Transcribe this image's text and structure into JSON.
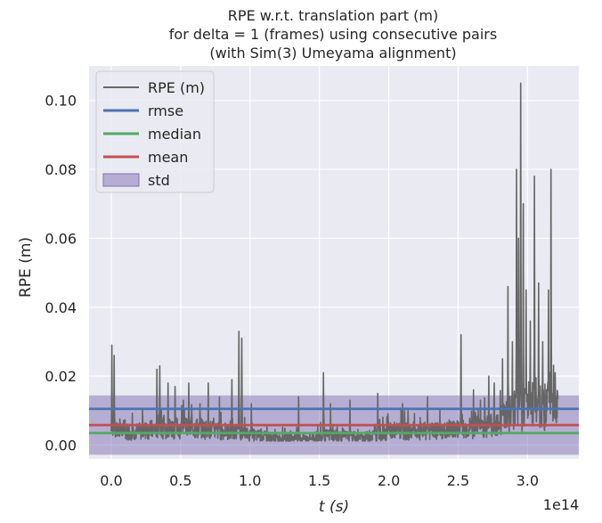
{
  "chart_data": {
    "type": "line",
    "title_lines": [
      "RPE w.r.t. translation part (m)",
      "for delta = 1 (frames) using consecutive pairs",
      "(with Sim(3) Umeyama alignment)"
    ],
    "xlabel": "t (s)",
    "ylabel": "RPE (m)",
    "x_offset_label": "1e14",
    "xlim": [
      -0.16,
      3.37
    ],
    "ylim": [
      -0.004,
      0.11
    ],
    "xticks": [
      0.0,
      0.5,
      1.0,
      1.5,
      2.0,
      2.5,
      3.0
    ],
    "xtick_labels": [
      "0.0",
      "0.5",
      "1.0",
      "1.5",
      "2.0",
      "2.5",
      "3.0"
    ],
    "yticks": [
      0.0,
      0.02,
      0.04,
      0.06,
      0.08,
      0.1
    ],
    "ytick_labels": [
      "0.00",
      "0.02",
      "0.04",
      "0.06",
      "0.08",
      "0.10"
    ],
    "grid": true,
    "legend_position": "top-left",
    "colors": {
      "background": "#eaeaf2",
      "grid": "#ffffff",
      "rpe": "#666666",
      "rmse": "#4c72b0",
      "median": "#55a868",
      "mean": "#c44e52",
      "std": "#8172b2"
    },
    "legend": [
      {
        "key": "rpe",
        "label": "RPE (m)",
        "kind": "line"
      },
      {
        "key": "rmse",
        "label": "rmse",
        "kind": "line"
      },
      {
        "key": "median",
        "label": "median",
        "kind": "line"
      },
      {
        "key": "mean",
        "label": "mean",
        "kind": "line"
      },
      {
        "key": "std",
        "label": "std",
        "kind": "patch"
      }
    ],
    "stats": {
      "rmse": 0.0105,
      "median": 0.0035,
      "mean": 0.0058,
      "std": 0.0086
    },
    "series": [
      {
        "key": "rpe",
        "x_range": [
          0.0,
          3.22
        ],
        "baseline": [
          [
            0.0,
            0.004
          ],
          [
            0.2,
            0.004
          ],
          [
            0.4,
            0.005
          ],
          [
            0.6,
            0.005
          ],
          [
            0.8,
            0.004
          ],
          [
            1.0,
            0.003
          ],
          [
            1.2,
            0.002
          ],
          [
            1.4,
            0.002
          ],
          [
            1.6,
            0.003
          ],
          [
            1.8,
            0.002
          ],
          [
            2.0,
            0.004
          ],
          [
            2.2,
            0.004
          ],
          [
            2.4,
            0.004
          ],
          [
            2.6,
            0.005
          ],
          [
            2.75,
            0.006
          ],
          [
            2.85,
            0.009
          ],
          [
            3.0,
            0.012
          ],
          [
            3.1,
            0.012
          ],
          [
            3.22,
            0.01
          ]
        ],
        "peaks": [
          [
            0.005,
            0.029
          ],
          [
            0.02,
            0.026
          ],
          [
            0.33,
            0.022
          ],
          [
            0.35,
            0.023
          ],
          [
            0.41,
            0.018
          ],
          [
            0.46,
            0.017
          ],
          [
            0.52,
            0.013
          ],
          [
            0.56,
            0.018
          ],
          [
            0.64,
            0.012
          ],
          [
            0.7,
            0.018
          ],
          [
            0.78,
            0.014
          ],
          [
            0.87,
            0.019
          ],
          [
            0.92,
            0.033
          ],
          [
            0.94,
            0.031
          ],
          [
            1.01,
            0.012
          ],
          [
            1.35,
            0.014
          ],
          [
            1.53,
            0.021
          ],
          [
            1.58,
            0.012
          ],
          [
            1.72,
            0.013
          ],
          [
            1.92,
            0.015
          ],
          [
            2.1,
            0.012
          ],
          [
            2.28,
            0.014
          ],
          [
            2.52,
            0.032
          ],
          [
            2.61,
            0.016
          ],
          [
            2.66,
            0.013
          ],
          [
            2.72,
            0.02
          ],
          [
            2.76,
            0.018
          ],
          [
            2.82,
            0.025
          ],
          [
            2.86,
            0.046
          ],
          [
            2.89,
            0.03
          ],
          [
            2.92,
            0.08
          ],
          [
            2.935,
            0.06
          ],
          [
            2.95,
            0.105
          ],
          [
            2.97,
            0.07
          ],
          [
            2.99,
            0.045
          ],
          [
            3.02,
            0.036
          ],
          [
            3.05,
            0.078
          ],
          [
            3.08,
            0.047
          ],
          [
            3.11,
            0.03
          ],
          [
            3.15,
            0.045
          ],
          [
            3.17,
            0.08
          ],
          [
            3.2,
            0.021
          ]
        ]
      }
    ]
  }
}
